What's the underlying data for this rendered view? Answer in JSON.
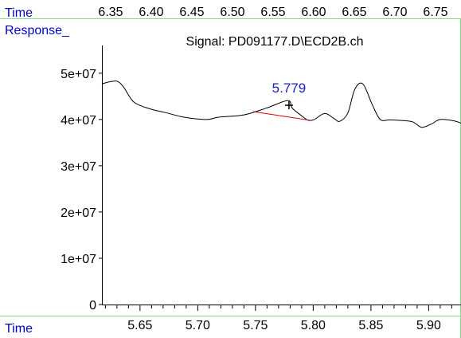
{
  "labels": {
    "top_time": "Time",
    "response": "Response_",
    "bottom_time": "Time",
    "signal": "Signal: PD091177.D\\ECD2B.ch"
  },
  "top_axis_ticks": [
    "6.35",
    "6.40",
    "6.45",
    "6.50",
    "6.55",
    "6.60",
    "6.65",
    "6.70",
    "6.75"
  ],
  "colors": {
    "label_blue": "#0000cc",
    "frame_green": "#80e080",
    "trace": "#000000",
    "baseline_red": "#dd0000",
    "peak_label": "#1a1acc"
  },
  "chart_data": {
    "type": "line",
    "xlabel": "Time",
    "ylabel": "Response_",
    "title": "Signal: PD091177.D\\ECD2B.ch",
    "xlim": [
      5.617,
      5.928
    ],
    "ylim": [
      0,
      56000000
    ],
    "x_ticks": [
      "5.65",
      "5.70",
      "5.75",
      "5.80",
      "5.85",
      "5.90"
    ],
    "y_ticks": [
      "0",
      "1e+07",
      "2e+07",
      "3e+07",
      "4e+07",
      "5e+07"
    ],
    "y_tick_values": [
      0,
      10000000,
      20000000,
      30000000,
      40000000,
      50000000
    ],
    "series": [
      {
        "x": [
          5.617,
          5.625,
          5.631,
          5.636,
          5.645,
          5.66,
          5.672,
          5.688,
          5.708,
          5.718,
          5.74,
          5.76,
          5.778,
          5.782,
          5.792,
          5.796,
          5.801,
          5.81,
          5.818,
          5.823,
          5.83,
          5.836,
          5.843,
          5.851,
          5.858,
          5.866,
          5.875,
          5.886,
          5.894,
          5.903,
          5.91,
          5.922,
          5.928
        ],
        "y": [
          47700000,
          48200000,
          48200000,
          46900000,
          43700000,
          42200000,
          41500000,
          40500000,
          40000000,
          40500000,
          41000000,
          42500000,
          44100000,
          42400000,
          40400000,
          39800000,
          40000000,
          41300000,
          40200000,
          39600000,
          41400000,
          46500000,
          47700000,
          43300000,
          40000000,
          39900000,
          39800000,
          39500000,
          38300000,
          39100000,
          40000000,
          39700000,
          39200000
        ]
      }
    ],
    "peak": {
      "label": "5.779",
      "x": 5.779,
      "y": 44100000
    },
    "baseline": {
      "x": [
        5.748,
        5.798
      ],
      "y": [
        41700000,
        39800000
      ]
    }
  }
}
